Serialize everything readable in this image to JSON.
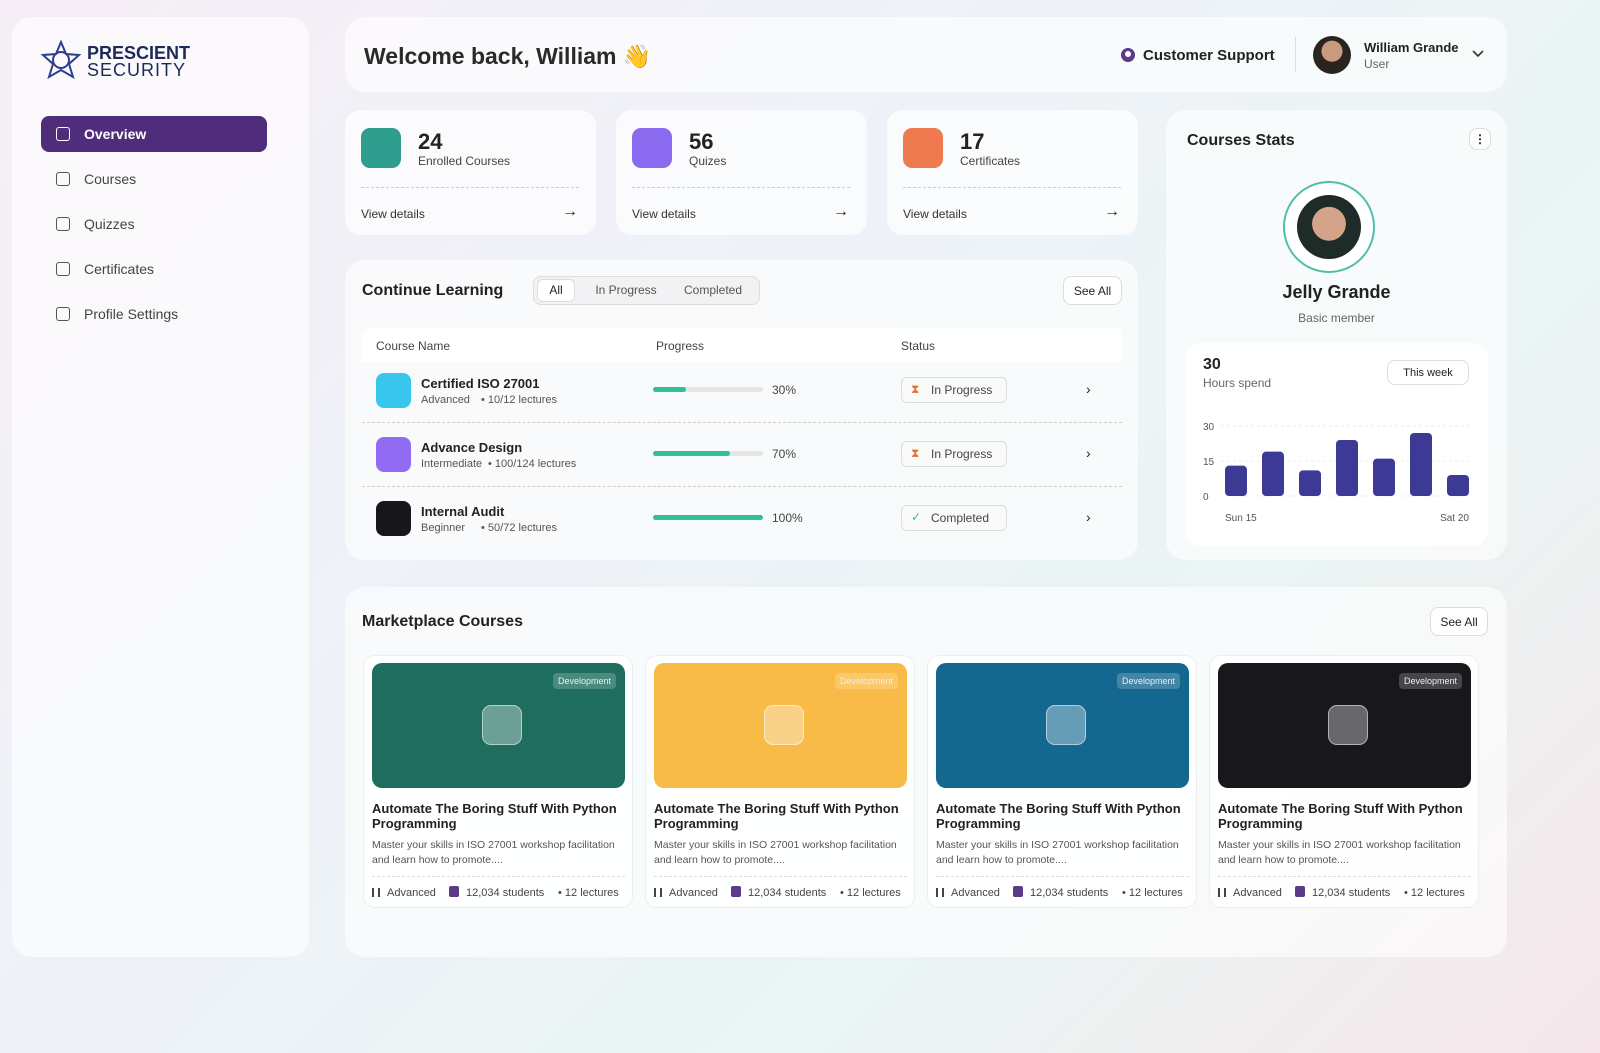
{
  "sidebar": {
    "logo": {
      "line1": "PRESCIENT",
      "line2": "SECURITY"
    },
    "nav": [
      "Overview",
      "Courses",
      "Quizzes",
      "Certificates",
      "Profile Settings"
    ]
  },
  "header": {
    "welcome": "Welcome back, William 👋",
    "support": "Customer Support",
    "user_name": "William Grande",
    "user_role": "User"
  },
  "stats": [
    {
      "value": 24,
      "label": "Enrolled Courses",
      "link": "View details",
      "color": "#2f9e8f"
    },
    {
      "value": 56,
      "label": "Quizes",
      "link": "View details",
      "color": "#8b6cf0"
    },
    {
      "value": 17,
      "label": "Certificates",
      "link": "View details",
      "color": "#f07a4f"
    }
  ],
  "continue_learning": {
    "title": "Continue Learning",
    "tabs": [
      "All",
      "In Progress",
      "Completed"
    ],
    "see_all": "See All",
    "columns": [
      "Course Name",
      "Progress",
      "Status"
    ],
    "rows": [
      {
        "name": "Certified ISO 27001",
        "level": "Advanced",
        "lectures": "10/12 lectures",
        "progress": 30,
        "progress_label": "30%",
        "status": "In Progress",
        "color": "#38c6ef"
      },
      {
        "name": "Advance Design",
        "level": "Intermediate",
        "lectures": "100/124 lectures",
        "progress": 70,
        "progress_label": "70%",
        "status": "In Progress",
        "color": "#8f6cf2"
      },
      {
        "name": "Internal Audit",
        "level": "Beginner",
        "lectures": "50/72 lectures",
        "progress": 100,
        "progress_label": "100%",
        "status": "Completed",
        "color": "#17171b"
      }
    ]
  },
  "courses_stats": {
    "title": "Courses Stats",
    "name": "Jelly Grande",
    "membership": "Basic member",
    "hours": 30,
    "hours_label": "Hours spend",
    "period": "This week"
  },
  "chart_data": {
    "type": "bar",
    "categories": [
      "Sun 15",
      null,
      null,
      null,
      null,
      null,
      "Sat 20"
    ],
    "values": [
      13,
      19,
      11,
      24,
      16,
      27,
      9
    ],
    "color": "#3d3a96",
    "ylim": [
      0,
      30
    ],
    "yticks": [
      0,
      15,
      30
    ],
    "grid": true
  },
  "marketplace": {
    "title": "Marketplace Courses",
    "see_all": "See All",
    "cards": [
      {
        "tag": "Development",
        "title": "Automate The Boring Stuff With Python Programming",
        "description": "Master your skills in ISO 27001 workshop facilitation and learn how to promote....",
        "level": "Advanced",
        "students": "12,034 students",
        "lectures": "12 lectures",
        "color": "#1e6d5f"
      },
      {
        "tag": "Development",
        "title": "Automate The Boring Stuff With Python Programming",
        "description": "Master your skills in ISO 27001 workshop facilitation and learn how to promote....",
        "level": "Advanced",
        "students": "12,034 students",
        "lectures": "12 lectures",
        "color": "#f8bb47"
      },
      {
        "tag": "Development",
        "title": "Automate The Boring Stuff With Python Programming",
        "description": "Master your skills in ISO 27001 workshop facilitation and learn how to promote....",
        "level": "Advanced",
        "students": "12,034 students",
        "lectures": "12 lectures",
        "color": "#14678f"
      },
      {
        "tag": "Development",
        "title": "Automate The Boring Stuff With Python Programming",
        "description": "Master your skills in ISO 27001 workshop facilitation and learn how to promote....",
        "level": "Advanced",
        "students": "12,034 students",
        "lectures": "12 lectures",
        "color": "#18181c"
      }
    ]
  }
}
